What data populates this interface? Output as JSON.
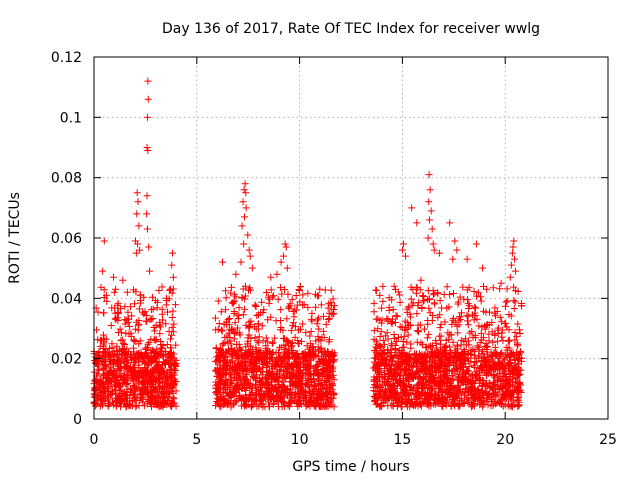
{
  "chart_data": {
    "type": "scatter",
    "title": "Day 136 of 2017, Rate Of TEC Index for receiver wwlg",
    "xlabel": "GPS time / hours",
    "ylabel": "ROTI / TECUs",
    "xlim": [
      0,
      25
    ],
    "ylim": [
      0,
      0.12
    ],
    "xticks": [
      0,
      5,
      10,
      15,
      20,
      25
    ],
    "xtick_labels": [
      "0",
      "5",
      "10",
      "15",
      "20",
      "25"
    ],
    "yticks": [
      0,
      0.02,
      0.04,
      0.06,
      0.08,
      0.1,
      0.12
    ],
    "ytick_labels": [
      "0",
      "0.02",
      "0.04",
      "0.06",
      "0.08",
      "0.1",
      "0.12"
    ],
    "grid": true,
    "marker": "plus",
    "color": "#ff0000",
    "series": [
      {
        "name": "ROTI",
        "segments": [
          {
            "x_range": [
              0,
              4
            ],
            "typical_range": [
              0.004,
              0.022
            ]
          },
          {
            "x_range": [
              5.9,
              11.7
            ],
            "typical_range": [
              0.004,
              0.022
            ]
          },
          {
            "x_range": [
              13.6,
              20.8
            ],
            "typical_range": [
              0.004,
              0.022
            ]
          }
        ],
        "points": [
          [
            2.62,
            0.112
          ],
          [
            2.64,
            0.106
          ],
          [
            2.6,
            0.1
          ],
          [
            2.58,
            0.09
          ],
          [
            2.62,
            0.089
          ],
          [
            2.58,
            0.074
          ],
          [
            2.56,
            0.068
          ],
          [
            2.6,
            0.063
          ],
          [
            2.66,
            0.057
          ],
          [
            2.7,
            0.049
          ],
          [
            2.1,
            0.075
          ],
          [
            2.14,
            0.072
          ],
          [
            2.08,
            0.068
          ],
          [
            2.18,
            0.064
          ],
          [
            2.02,
            0.059
          ],
          [
            2.12,
            0.058
          ],
          [
            2.22,
            0.056
          ],
          [
            2.06,
            0.055
          ],
          [
            0.5,
            0.059
          ],
          [
            0.42,
            0.049
          ],
          [
            0.95,
            0.047
          ],
          [
            1.4,
            0.046
          ],
          [
            1.05,
            0.043
          ],
          [
            1.62,
            0.042
          ],
          [
            3.82,
            0.055
          ],
          [
            3.78,
            0.051
          ],
          [
            3.86,
            0.047
          ],
          [
            3.72,
            0.043
          ],
          [
            6.25,
            0.052
          ],
          [
            7.35,
            0.078
          ],
          [
            7.3,
            0.076
          ],
          [
            7.38,
            0.075
          ],
          [
            7.25,
            0.072
          ],
          [
            7.4,
            0.07
          ],
          [
            7.32,
            0.067
          ],
          [
            7.2,
            0.064
          ],
          [
            7.48,
            0.061
          ],
          [
            7.28,
            0.058
          ],
          [
            7.55,
            0.056
          ],
          [
            7.6,
            0.054
          ],
          [
            7.15,
            0.052
          ],
          [
            7.7,
            0.05
          ],
          [
            6.9,
            0.048
          ],
          [
            9.3,
            0.058
          ],
          [
            9.35,
            0.057
          ],
          [
            9.22,
            0.054
          ],
          [
            9.1,
            0.052
          ],
          [
            9.4,
            0.05
          ],
          [
            8.9,
            0.048
          ],
          [
            8.6,
            0.047
          ],
          [
            10.4,
            0.037
          ],
          [
            10.6,
            0.035
          ],
          [
            11.2,
            0.027
          ],
          [
            15.45,
            0.07
          ],
          [
            16.3,
            0.081
          ],
          [
            16.35,
            0.076
          ],
          [
            16.28,
            0.072
          ],
          [
            16.4,
            0.069
          ],
          [
            16.32,
            0.066
          ],
          [
            16.45,
            0.063
          ],
          [
            16.25,
            0.06
          ],
          [
            16.5,
            0.058
          ],
          [
            16.55,
            0.056
          ],
          [
            15.05,
            0.058
          ],
          [
            15.0,
            0.056
          ],
          [
            15.15,
            0.054
          ],
          [
            15.7,
            0.065
          ],
          [
            16.8,
            0.055
          ],
          [
            17.3,
            0.065
          ],
          [
            17.55,
            0.059
          ],
          [
            17.65,
            0.056
          ],
          [
            17.45,
            0.053
          ],
          [
            18.6,
            0.058
          ],
          [
            18.15,
            0.053
          ],
          [
            18.9,
            0.05
          ],
          [
            20.42,
            0.059
          ],
          [
            20.38,
            0.057
          ],
          [
            20.35,
            0.055
          ],
          [
            20.45,
            0.053
          ],
          [
            20.3,
            0.051
          ],
          [
            20.5,
            0.049
          ],
          [
            20.25,
            0.047
          ],
          [
            19.8,
            0.045
          ],
          [
            13.9,
            0.041
          ],
          [
            14.05,
            0.039
          ],
          [
            14.6,
            0.044
          ],
          [
            15.9,
            0.046
          ],
          [
            19.1,
            0.043
          ]
        ]
      }
    ]
  }
}
